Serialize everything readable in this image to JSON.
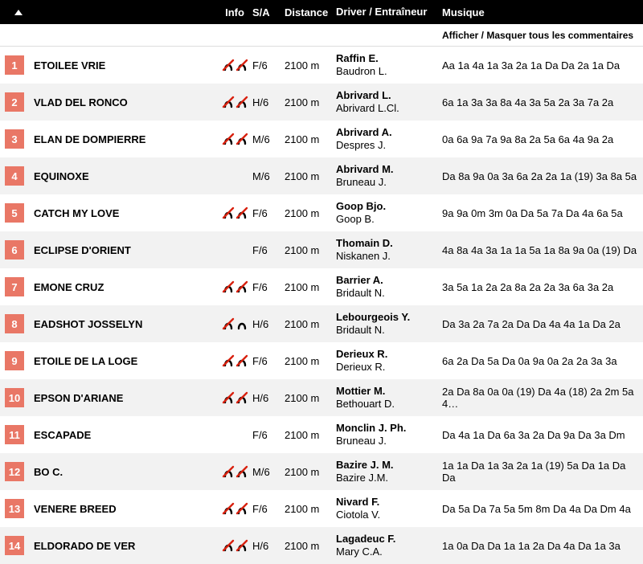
{
  "headers": {
    "info": "Info",
    "sa": "S/A",
    "distance": "Distance",
    "driver": "Driver / Entraîneur",
    "musique": "Musique"
  },
  "toggle_comments": "Afficher / Masquer tous les commentaires",
  "colors": {
    "badge_bg": "#e97766",
    "header_bg": "#000000",
    "row_even": "#f2f2f2",
    "row_odd": "#ffffff",
    "shoe_stroke": "#000000",
    "shoe_slash": "#d8210f"
  },
  "shoe_variants": {
    "none": [
      false,
      false
    ],
    "both": [
      true,
      true
    ],
    "front": [
      true,
      false
    ]
  },
  "runners": [
    {
      "num": "1",
      "name": "ETOILEE VRIE",
      "shoes": "both",
      "sa": "F/6",
      "dist": "2100 m",
      "driver": "Raffin E.",
      "trainer": "Baudron L.",
      "musique": "Aa 1a 4a 1a 3a 2a 1a Da Da 2a 1a Da"
    },
    {
      "num": "2",
      "name": "VLAD DEL RONCO",
      "shoes": "both",
      "sa": "H/6",
      "dist": "2100 m",
      "driver": "Abrivard L.",
      "trainer": "Abrivard L.Cl.",
      "musique": "6a 1a 3a 3a 8a 4a 3a 5a 2a 3a 7a 2a"
    },
    {
      "num": "3",
      "name": "ELAN DE DOMPIERRE",
      "shoes": "both",
      "sa": "M/6",
      "dist": "2100 m",
      "driver": "Abrivard A.",
      "trainer": "Despres J.",
      "musique": "0a 6a 9a 7a 9a 8a 2a 5a 6a 4a 9a 2a"
    },
    {
      "num": "4",
      "name": "EQUINOXE",
      "shoes": "none",
      "sa": "M/6",
      "dist": "2100 m",
      "driver": "Abrivard M.",
      "trainer": "Bruneau J.",
      "musique": "Da 8a 9a 0a 3a 6a 2a 2a 1a (19) 3a 8a 5a"
    },
    {
      "num": "5",
      "name": "CATCH MY LOVE",
      "shoes": "both",
      "sa": "F/6",
      "dist": "2100 m",
      "driver": "Goop Bjo.",
      "trainer": "Goop B.",
      "musique": "9a 9a 0m 3m 0a Da 5a 7a Da 4a 6a 5a"
    },
    {
      "num": "6",
      "name": "ECLIPSE D'ORIENT",
      "shoes": "none",
      "sa": "F/6",
      "dist": "2100 m",
      "driver": "Thomain D.",
      "trainer": "Niskanen J.",
      "musique": "4a 8a 4a 3a 1a 1a 5a 1a 8a 9a 0a (19) Da"
    },
    {
      "num": "7",
      "name": "EMONE CRUZ",
      "shoes": "both",
      "sa": "F/6",
      "dist": "2100 m",
      "driver": "Barrier A.",
      "trainer": "Bridault N.",
      "musique": "3a 5a 1a 2a 2a 8a 2a 2a 3a 6a 3a 2a"
    },
    {
      "num": "8",
      "name": "EADSHOT JOSSELYN",
      "shoes": "front",
      "sa": "H/6",
      "dist": "2100 m",
      "driver": "Lebourgeois Y.",
      "trainer": "Bridault N.",
      "musique": "Da 3a 2a 7a 2a Da Da 4a 4a 1a Da 2a"
    },
    {
      "num": "9",
      "name": "ETOILE DE LA LOGE",
      "shoes": "both",
      "sa": "F/6",
      "dist": "2100 m",
      "driver": "Derieux R.",
      "trainer": "Derieux R.",
      "musique": "6a 2a Da 5a Da 0a 9a 0a 2a 2a 3a 3a"
    },
    {
      "num": "10",
      "name": "EPSON D'ARIANE",
      "shoes": "both",
      "sa": "H/6",
      "dist": "2100 m",
      "driver": "Mottier M.",
      "trainer": "Bethouart D.",
      "musique": "2a Da 8a 0a 0a (19) Da 4a (18) 2a 2m 5a 4…"
    },
    {
      "num": "11",
      "name": "ESCAPADE",
      "shoes": "none",
      "sa": "F/6",
      "dist": "2100 m",
      "driver": "Monclin J. Ph.",
      "trainer": "Bruneau J.",
      "musique": "Da 4a 1a Da 6a 3a 2a Da 9a Da 3a Dm"
    },
    {
      "num": "12",
      "name": "BO C.",
      "shoes": "both",
      "sa": "M/6",
      "dist": "2100 m",
      "driver": "Bazire J. M.",
      "trainer": "Bazire J.M.",
      "musique": "1a 1a Da 1a 3a 2a 1a (19) 5a Da 1a Da Da"
    },
    {
      "num": "13",
      "name": "VENERE BREED",
      "shoes": "both",
      "sa": "F/6",
      "dist": "2100 m",
      "driver": "Nivard F.",
      "trainer": "Ciotola V.",
      "musique": "Da 5a Da 7a 5a 5m 8m Da 4a Da Dm 4a"
    },
    {
      "num": "14",
      "name": "ELDORADO DE VER",
      "shoes": "both",
      "sa": "H/6",
      "dist": "2100 m",
      "driver": "Lagadeuc F.",
      "trainer": "Mary C.A.",
      "musique": "1a 0a Da Da 1a 1a 2a Da 4a Da 1a 3a"
    }
  ]
}
